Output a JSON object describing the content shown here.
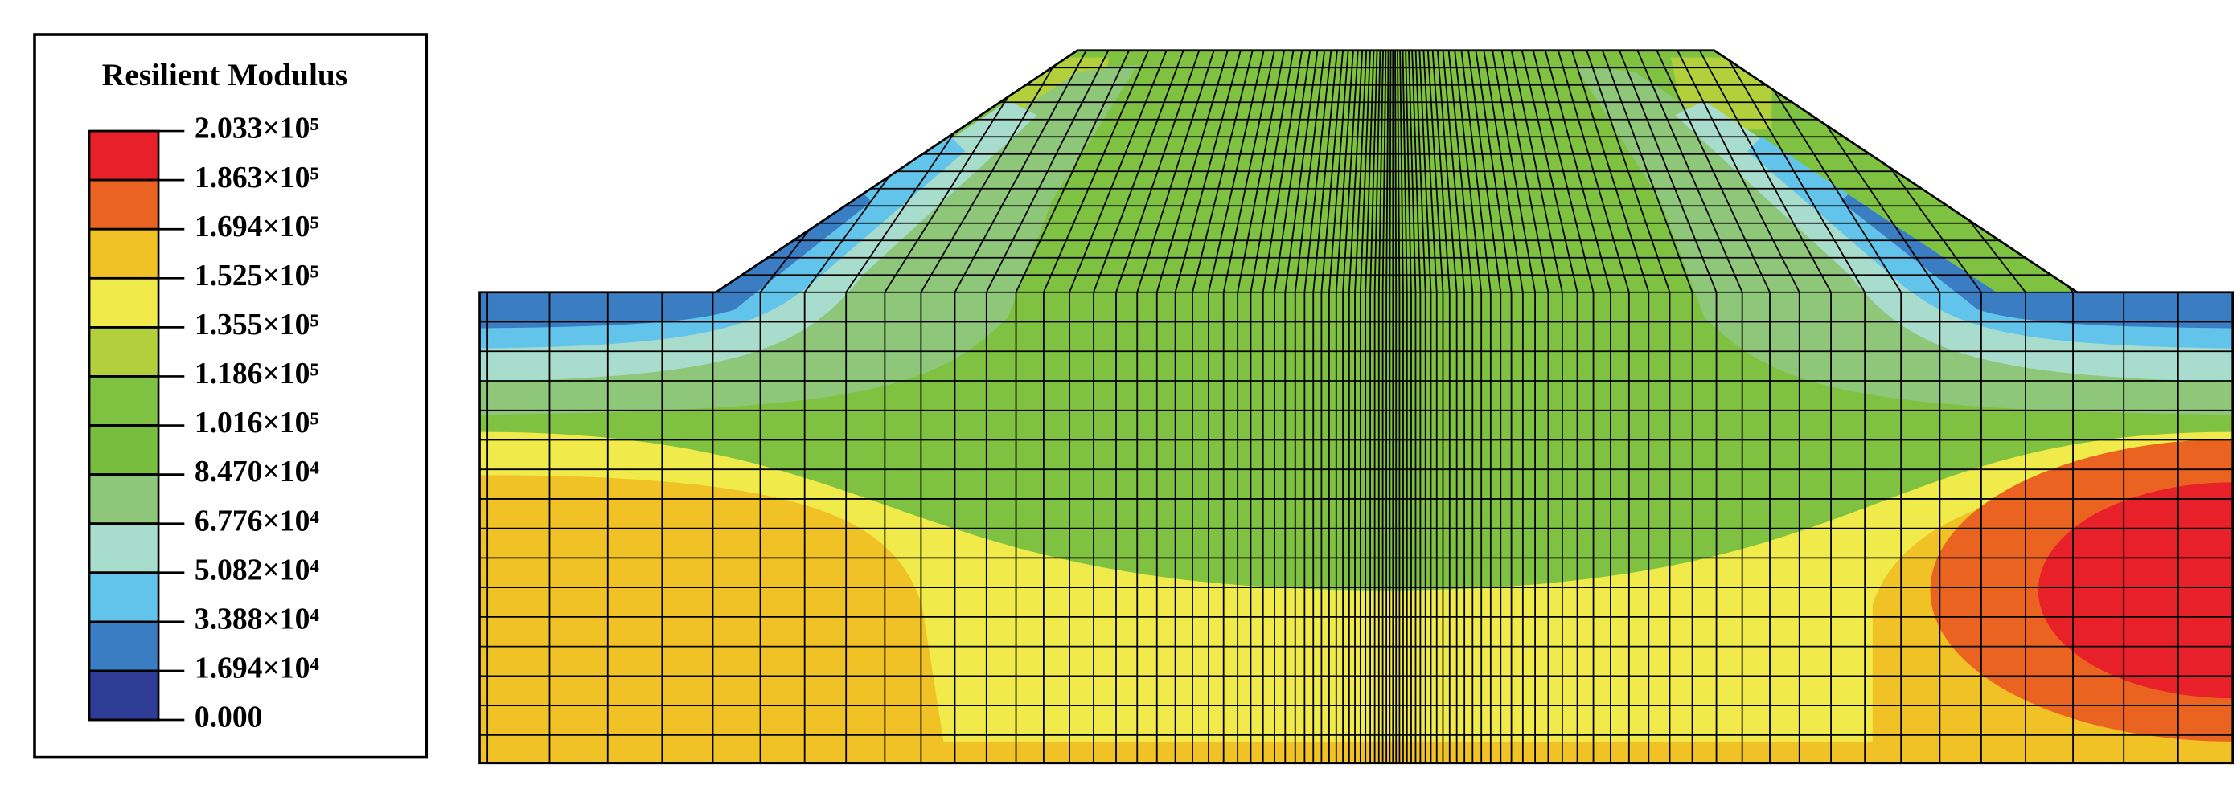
{
  "chart_data": {
    "type": "contour",
    "colorbar": {
      "title": "Resilient Modulus",
      "ticks": [
        {
          "value": 203300,
          "label": "2.033×10⁵"
        },
        {
          "value": 186300,
          "label": "1.863×10⁵"
        },
        {
          "value": 169400,
          "label": "1.694×10⁵"
        },
        {
          "value": 152500,
          "label": "1.525×10⁵"
        },
        {
          "value": 135500,
          "label": "1.355×10⁵"
        },
        {
          "value": 118600,
          "label": "1.186×10⁵"
        },
        {
          "value": 101600,
          "label": "1.016×10⁵"
        },
        {
          "value": 84700,
          "label": "8.470×10⁴"
        },
        {
          "value": 67760,
          "label": "6.776×10⁴"
        },
        {
          "value": 50820,
          "label": "5.082×10⁴"
        },
        {
          "value": 33880,
          "label": "3.388×10⁴"
        },
        {
          "value": 16940,
          "label": "1.694×10⁴"
        },
        {
          "value": 0,
          "label": "0.000"
        }
      ],
      "colors": [
        "#e8202a",
        "#ea6321",
        "#f0c226",
        "#f0ea4a",
        "#b3d03c",
        "#7fc241",
        "#79bd3f",
        "#8fc77a",
        "#a8dccd",
        "#62c4ea",
        "#3a7dc2",
        "#2e3c95"
      ]
    }
  }
}
